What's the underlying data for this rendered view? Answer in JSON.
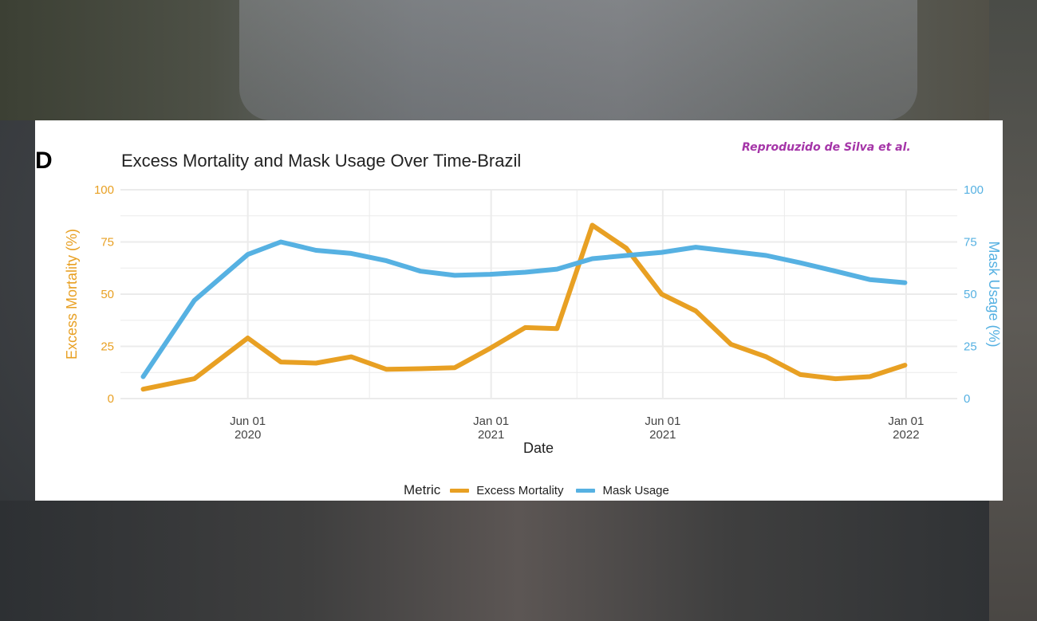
{
  "panel_label": "D",
  "credit": "Reproduzido de Silva et al.",
  "chart_data": {
    "type": "line",
    "title": "Excess Mortality and Mask Usage Over Time-Brazil",
    "xlabel": "Date",
    "ylabel_left": "Excess Mortality (%)",
    "ylabel_right": "Mask Usage (%)",
    "ylim": [
      0,
      100
    ],
    "yticks": [
      0,
      25,
      50,
      75,
      100
    ],
    "xlim": [
      "2020-02-10",
      "2022-02-15"
    ],
    "xticks": [
      {
        "date": "2020-06-01",
        "label_line1": "Jun 01",
        "label_line2": "2020"
      },
      {
        "date": "2021-01-01",
        "label_line1": "Jan 01",
        "label_line2": "2021"
      },
      {
        "date": "2021-06-01",
        "label_line1": "Jun 01",
        "label_line2": "2021"
      },
      {
        "date": "2022-01-01",
        "label_line1": "Jan 01",
        "label_line2": "2022"
      }
    ],
    "grid": true,
    "legend_title": "Metric",
    "legend_position": "bottom",
    "series": [
      {
        "name": "Excess Mortality",
        "color": "#e8a023",
        "axis": "left",
        "x": [
          "2020-03-01",
          "2020-04-15",
          "2020-06-01",
          "2020-06-30",
          "2020-07-31",
          "2020-08-31",
          "2020-10-01",
          "2020-10-31",
          "2020-11-30",
          "2020-12-31",
          "2021-01-31",
          "2021-02-28",
          "2021-03-31",
          "2021-04-30",
          "2021-05-31",
          "2021-06-30",
          "2021-07-31",
          "2021-08-31",
          "2021-09-30",
          "2021-10-31",
          "2021-11-30",
          "2021-12-31"
        ],
        "values": [
          4.5,
          9.5,
          29,
          17.5,
          17,
          20,
          14,
          14.3,
          14.8,
          24,
          34,
          33.5,
          83,
          72,
          50,
          42,
          26,
          20,
          11.5,
          9.5,
          10.5,
          16
        ]
      },
      {
        "name": "Mask Usage",
        "color": "#56b1e2",
        "axis": "right",
        "x": [
          "2020-03-01",
          "2020-04-15",
          "2020-06-01",
          "2020-06-30",
          "2020-07-31",
          "2020-08-31",
          "2020-10-01",
          "2020-10-31",
          "2020-11-30",
          "2020-12-31",
          "2021-01-31",
          "2021-02-28",
          "2021-03-31",
          "2021-04-30",
          "2021-05-31",
          "2021-06-30",
          "2021-07-31",
          "2021-08-31",
          "2021-09-30",
          "2021-10-31",
          "2021-11-30",
          "2021-12-31"
        ],
        "values": [
          10.5,
          47,
          69,
          75,
          71,
          69.5,
          66,
          61,
          59,
          59.5,
          60.5,
          62,
          67,
          68.5,
          70,
          72.5,
          70.5,
          68.5,
          65,
          61,
          57,
          55.5
        ]
      }
    ]
  }
}
